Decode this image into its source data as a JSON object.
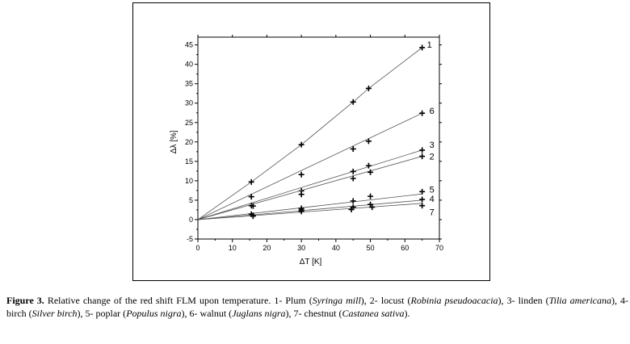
{
  "chart_data": {
    "type": "scatter",
    "xlabel": "ΔT [K]",
    "ylabel": "Δλ  [%]",
    "xlim": [
      0,
      70
    ],
    "ylim": [
      -5,
      47
    ],
    "xticks": [
      "0",
      "10",
      "20",
      "30",
      "40",
      "50",
      "60",
      "70"
    ],
    "yticks": [
      "-5",
      "0",
      "5",
      "10",
      "15",
      "20",
      "25",
      "30",
      "35",
      "40",
      "45"
    ],
    "grid": false,
    "series": [
      {
        "name": "1",
        "x": [
          15.5,
          30,
          45,
          49.5,
          65
        ],
        "y": [
          9.7,
          19.3,
          30.3,
          33.8,
          44.3
        ],
        "fit": [
          [
            0,
            0
          ],
          [
            15.5,
            9.7
          ],
          [
            30,
            19.3
          ],
          [
            45,
            30.3
          ],
          [
            49.5,
            33.8
          ],
          [
            65,
            44.3
          ]
        ]
      },
      {
        "name": "6",
        "x": [
          15.5,
          30,
          45,
          49.5,
          65
        ],
        "y": [
          5.9,
          11.6,
          18.2,
          20.2,
          27.4
        ],
        "fit": [
          [
            0,
            0
          ],
          [
            65,
            27.4
          ]
        ]
      },
      {
        "name": "3",
        "x": [
          15.5,
          30,
          45,
          49.5,
          65
        ],
        "y": [
          3.6,
          7.4,
          12.4,
          13.9,
          17.9
        ],
        "fit": [
          [
            0,
            0
          ],
          [
            65,
            17.9
          ]
        ]
      },
      {
        "name": "2",
        "x": [
          16,
          30,
          45,
          50,
          65
        ],
        "y": [
          3.5,
          6.5,
          10.6,
          12.2,
          16.3
        ],
        "fit": [
          [
            0,
            0
          ],
          [
            65,
            16.3
          ]
        ]
      },
      {
        "name": "5",
        "x": [
          15.5,
          30,
          45,
          50,
          65
        ],
        "y": [
          1.4,
          2.9,
          4.8,
          6.0,
          7.2
        ],
        "fit": [
          [
            0,
            0
          ],
          [
            65,
            6.6
          ]
        ]
      },
      {
        "name": "4",
        "x": [
          16,
          30,
          45,
          50,
          65
        ],
        "y": [
          1.1,
          2.5,
          3.2,
          3.9,
          5.2
        ],
        "fit": [
          [
            0,
            0
          ],
          [
            65,
            5.0
          ]
        ]
      },
      {
        "name": "7",
        "x": [
          16,
          30,
          44.5,
          50.5,
          65
        ],
        "y": [
          0.9,
          2.1,
          2.6,
          3.2,
          3.6
        ],
        "fit": [
          [
            0,
            0
          ],
          [
            65,
            4.2
          ]
        ]
      }
    ]
  },
  "caption": {
    "figure_label": "Figure 3.",
    "parts": [
      {
        "t": " Relative change of the red shift FLM upon temperature. 1- Plum (",
        "i": false
      },
      {
        "t": "Syringa mill",
        "i": true
      },
      {
        "t": "), 2- locust (",
        "i": false
      },
      {
        "t": "Robinia pseudoacacia",
        "i": true
      },
      {
        "t": "), 3- linden (",
        "i": false
      },
      {
        "t": "Tilia americana",
        "i": true
      },
      {
        "t": "), 4- birch (",
        "i": false
      },
      {
        "t": "Silver birch",
        "i": true
      },
      {
        "t": "), 5- poplar (",
        "i": false
      },
      {
        "t": "Populus nigra",
        "i": true
      },
      {
        "t": "), 6- walnut (",
        "i": false
      },
      {
        "t": "Juglans nigra",
        "i": true
      },
      {
        "t": "), 7- chestnut (",
        "i": false
      },
      {
        "t": "Castanea sativa",
        "i": true
      },
      {
        "t": ").",
        "i": false
      }
    ]
  }
}
